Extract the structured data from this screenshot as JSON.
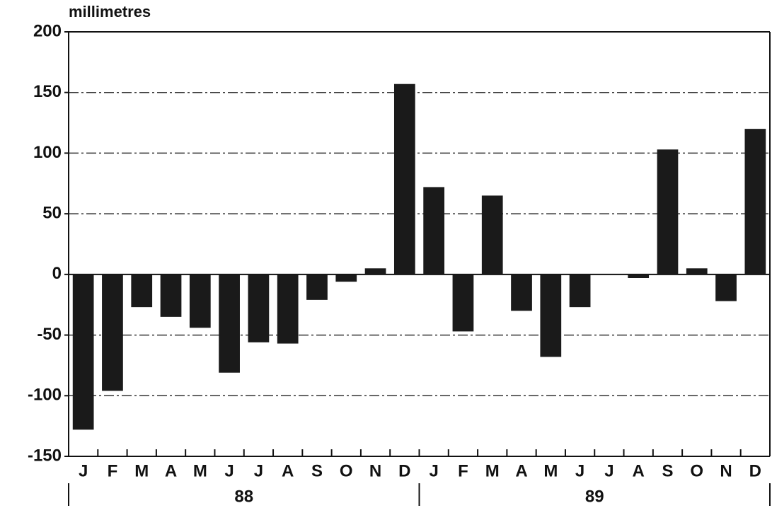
{
  "chart_data": {
    "type": "bar",
    "y_axis_label": "millimetres",
    "categories": [
      "J",
      "F",
      "M",
      "A",
      "M",
      "J",
      "J",
      "A",
      "S",
      "O",
      "N",
      "D",
      "J",
      "F",
      "M",
      "A",
      "M",
      "J",
      "J",
      "A",
      "S",
      "O",
      "N",
      "D"
    ],
    "groups": [
      "88",
      "89"
    ],
    "values": [
      -128,
      -96,
      -27,
      -35,
      -44,
      -81,
      -56,
      -57,
      -21,
      -6,
      5,
      157,
      72,
      -47,
      65,
      -30,
      -68,
      -27,
      0,
      -3,
      103,
      5,
      -22,
      120
    ],
    "color": "#1a1a1a",
    "ylim": [
      -150,
      200
    ],
    "yticks": [
      -150,
      -100,
      -50,
      0,
      50,
      100,
      150,
      200
    ],
    "grid": true
  }
}
